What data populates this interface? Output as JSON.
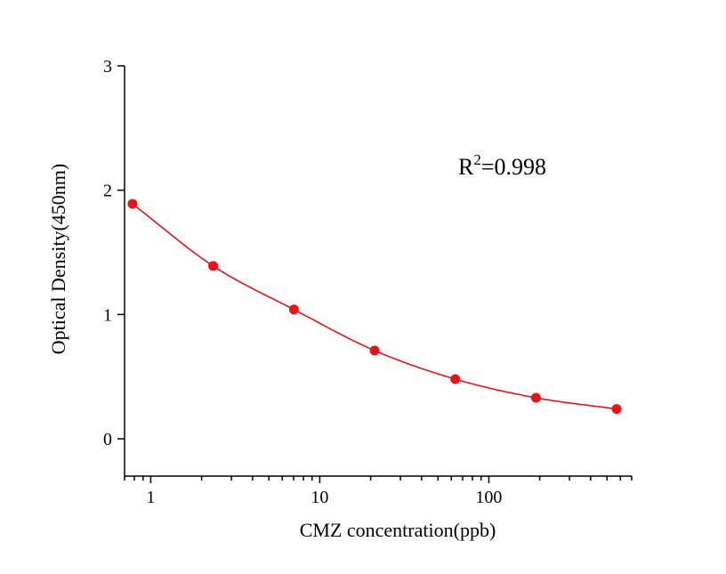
{
  "chart_data": {
    "type": "scatter",
    "title": "",
    "xlabel": "CMZ concentration(ppb)",
    "ylabel": "Optical Density(450nm)",
    "x_scale": "log",
    "xlim": [
      0.7,
      700
    ],
    "ylim": [
      -0.3,
      3
    ],
    "x_ticks": [
      1,
      10,
      100
    ],
    "x_tick_labels": [
      "1",
      "10",
      "100"
    ],
    "y_ticks": [
      0,
      1,
      2,
      3
    ],
    "y_tick_labels": [
      "0",
      "1",
      "2",
      "3"
    ],
    "grid": false,
    "series": [
      {
        "color": "#e8141b",
        "x": [
          0.78,
          2.34,
          7.03,
          21.1,
          63.3,
          190,
          570
        ],
        "y": [
          1.89,
          1.39,
          1.04,
          0.71,
          0.48,
          0.33,
          0.24
        ],
        "fit_curve": true
      }
    ],
    "annotation": {
      "text_main": "R",
      "text_sup": "2",
      "text_rest": "=0.998"
    }
  }
}
